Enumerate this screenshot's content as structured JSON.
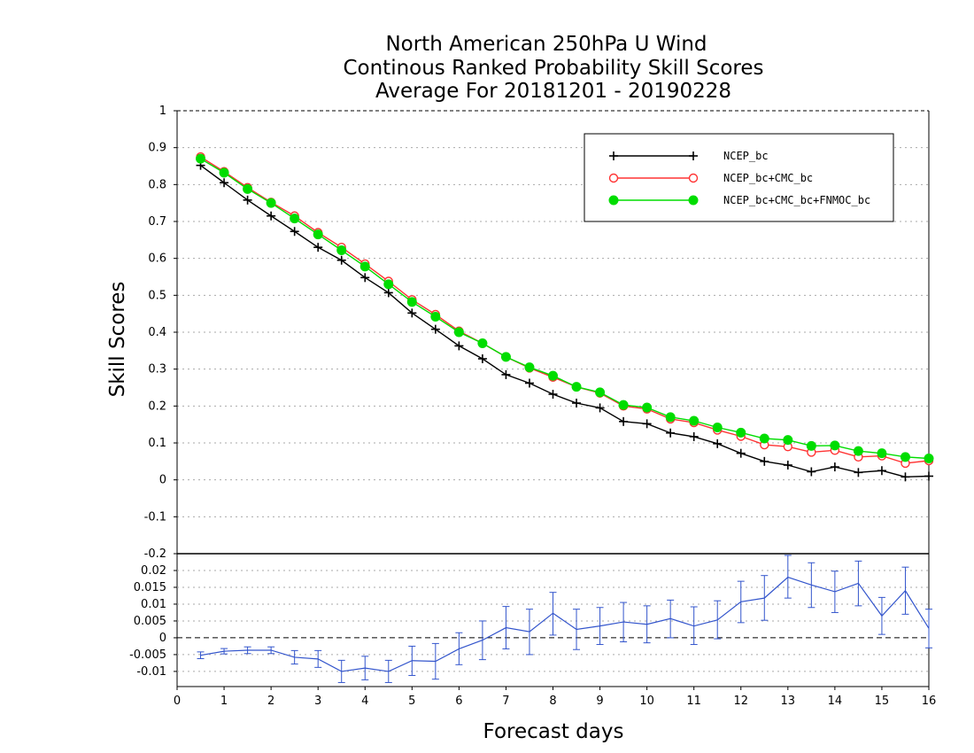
{
  "chart_data": [
    {
      "type": "line",
      "panel": "main",
      "title": "North American 250hPa U Wind",
      "subtitle": "Continous Ranked Probability Skill Scores",
      "subtitle2": "Average For 20181201 - 20190228",
      "xlabel": "Forecast days",
      "ylabel": "Skill Scores",
      "xlim": [
        0,
        16
      ],
      "ylim": [
        -0.2,
        1
      ],
      "x_ticks": [
        "0",
        "1",
        "2",
        "3",
        "4",
        "5",
        "6",
        "7",
        "8",
        "9",
        "10",
        "11",
        "12",
        "13",
        "14",
        "15",
        "16"
      ],
      "y_ticks": [
        "1",
        "0.9",
        "0.8",
        "0.7",
        "0.6",
        "0.5",
        "0.4",
        "0.3",
        "0.2",
        "0.1",
        "0",
        "-0.1",
        "-0.2"
      ],
      "grid": true,
      "legend_position": "top-right",
      "x": [
        0.5,
        1,
        1.5,
        2,
        2.5,
        3,
        3.5,
        4,
        4.5,
        5,
        5.5,
        6,
        6.5,
        7,
        7.5,
        8,
        8.5,
        9,
        9.5,
        10,
        10.5,
        11,
        11.5,
        12,
        12.5,
        13,
        13.5,
        14,
        14.5,
        15,
        15.5,
        16
      ],
      "series": [
        {
          "name": "NCEP_bc",
          "color": "#000000",
          "marker": "plus",
          "values": [
            0.852,
            0.805,
            0.758,
            0.715,
            0.673,
            0.63,
            0.595,
            0.548,
            0.507,
            0.452,
            0.408,
            0.363,
            0.328,
            0.285,
            0.262,
            0.232,
            0.208,
            0.195,
            0.158,
            0.152,
            0.127,
            0.117,
            0.098,
            0.072,
            0.05,
            0.04,
            0.022,
            0.035,
            0.02,
            0.025,
            0.008,
            0.01
          ]
        },
        {
          "name": "NCEP_bc+CMC_bc",
          "color": "#ff3333",
          "marker": "open-circle",
          "values": [
            0.875,
            0.835,
            0.792,
            0.752,
            0.715,
            0.67,
            0.63,
            0.585,
            0.538,
            0.488,
            0.448,
            0.403,
            0.37,
            0.333,
            0.303,
            0.278,
            0.252,
            0.235,
            0.2,
            0.192,
            0.165,
            0.155,
            0.135,
            0.118,
            0.095,
            0.09,
            0.075,
            0.08,
            0.062,
            0.065,
            0.045,
            0.052
          ]
        },
        {
          "name": "NCEP_bc+CMC_bc+FNMOC_bc",
          "color": "#00dd00",
          "marker": "filled-circle",
          "values": [
            0.87,
            0.832,
            0.788,
            0.75,
            0.708,
            0.665,
            0.622,
            0.578,
            0.53,
            0.482,
            0.442,
            0.4,
            0.37,
            0.333,
            0.305,
            0.282,
            0.252,
            0.237,
            0.203,
            0.196,
            0.17,
            0.16,
            0.142,
            0.128,
            0.112,
            0.108,
            0.092,
            0.093,
            0.078,
            0.072,
            0.062,
            0.058
          ]
        }
      ]
    },
    {
      "type": "line",
      "panel": "difference",
      "xlim": [
        0,
        16
      ],
      "ylim": [
        -0.0145,
        0.025
      ],
      "y_ticks": [
        "0.02",
        "0.015",
        "0.01",
        "0.005",
        "0",
        "-0.005",
        "-0.01"
      ],
      "y_tick_values": [
        0.02,
        0.015,
        0.01,
        0.005,
        0,
        -0.005,
        -0.01
      ],
      "zero_line": "dashed",
      "x": [
        0.5,
        1,
        1.5,
        2,
        2.5,
        3,
        3.5,
        4,
        4.5,
        5,
        5.5,
        6,
        6.5,
        7,
        7.5,
        8,
        8.5,
        9,
        9.5,
        10,
        10.5,
        11,
        11.5,
        12,
        12.5,
        13,
        13.5,
        14,
        14.5,
        15,
        15.5,
        16
      ],
      "series": [
        {
          "color": "#3355cc",
          "values": [
            -0.0052,
            -0.004,
            -0.0037,
            -0.0037,
            -0.0058,
            -0.0063,
            -0.01,
            -0.009,
            -0.01,
            -0.0068,
            -0.007,
            -0.0033,
            -0.0007,
            0.003,
            0.0018,
            0.0073,
            0.0025,
            0.0035,
            0.0047,
            0.004,
            0.0057,
            0.0035,
            0.0053,
            0.0107,
            0.0118,
            0.018,
            0.0157,
            0.0137,
            0.0162,
            0.0065,
            0.014,
            0.0028
          ],
          "lower": [
            -0.0062,
            -0.0048,
            -0.0047,
            -0.0047,
            -0.0078,
            -0.0088,
            -0.0133,
            -0.0125,
            -0.0133,
            -0.0112,
            -0.0123,
            -0.008,
            -0.0065,
            -0.0033,
            -0.005,
            0.0008,
            -0.0035,
            -0.002,
            -0.0012,
            -0.0015,
            0.0,
            -0.002,
            -0.0003,
            0.0045,
            0.0052,
            0.0118,
            0.009,
            0.0075,
            0.0095,
            0.001,
            0.007,
            -0.003
          ],
          "upper": [
            -0.0042,
            -0.0032,
            -0.0027,
            -0.0027,
            -0.0038,
            -0.0038,
            -0.0067,
            -0.0055,
            -0.0067,
            -0.0025,
            -0.0017,
            0.0015,
            0.005,
            0.0093,
            0.0085,
            0.0135,
            0.0085,
            0.009,
            0.0105,
            0.0095,
            0.0112,
            0.0092,
            0.011,
            0.0168,
            0.0185,
            0.0245,
            0.0223,
            0.0198,
            0.0228,
            0.012,
            0.021,
            0.0085
          ]
        }
      ]
    }
  ]
}
